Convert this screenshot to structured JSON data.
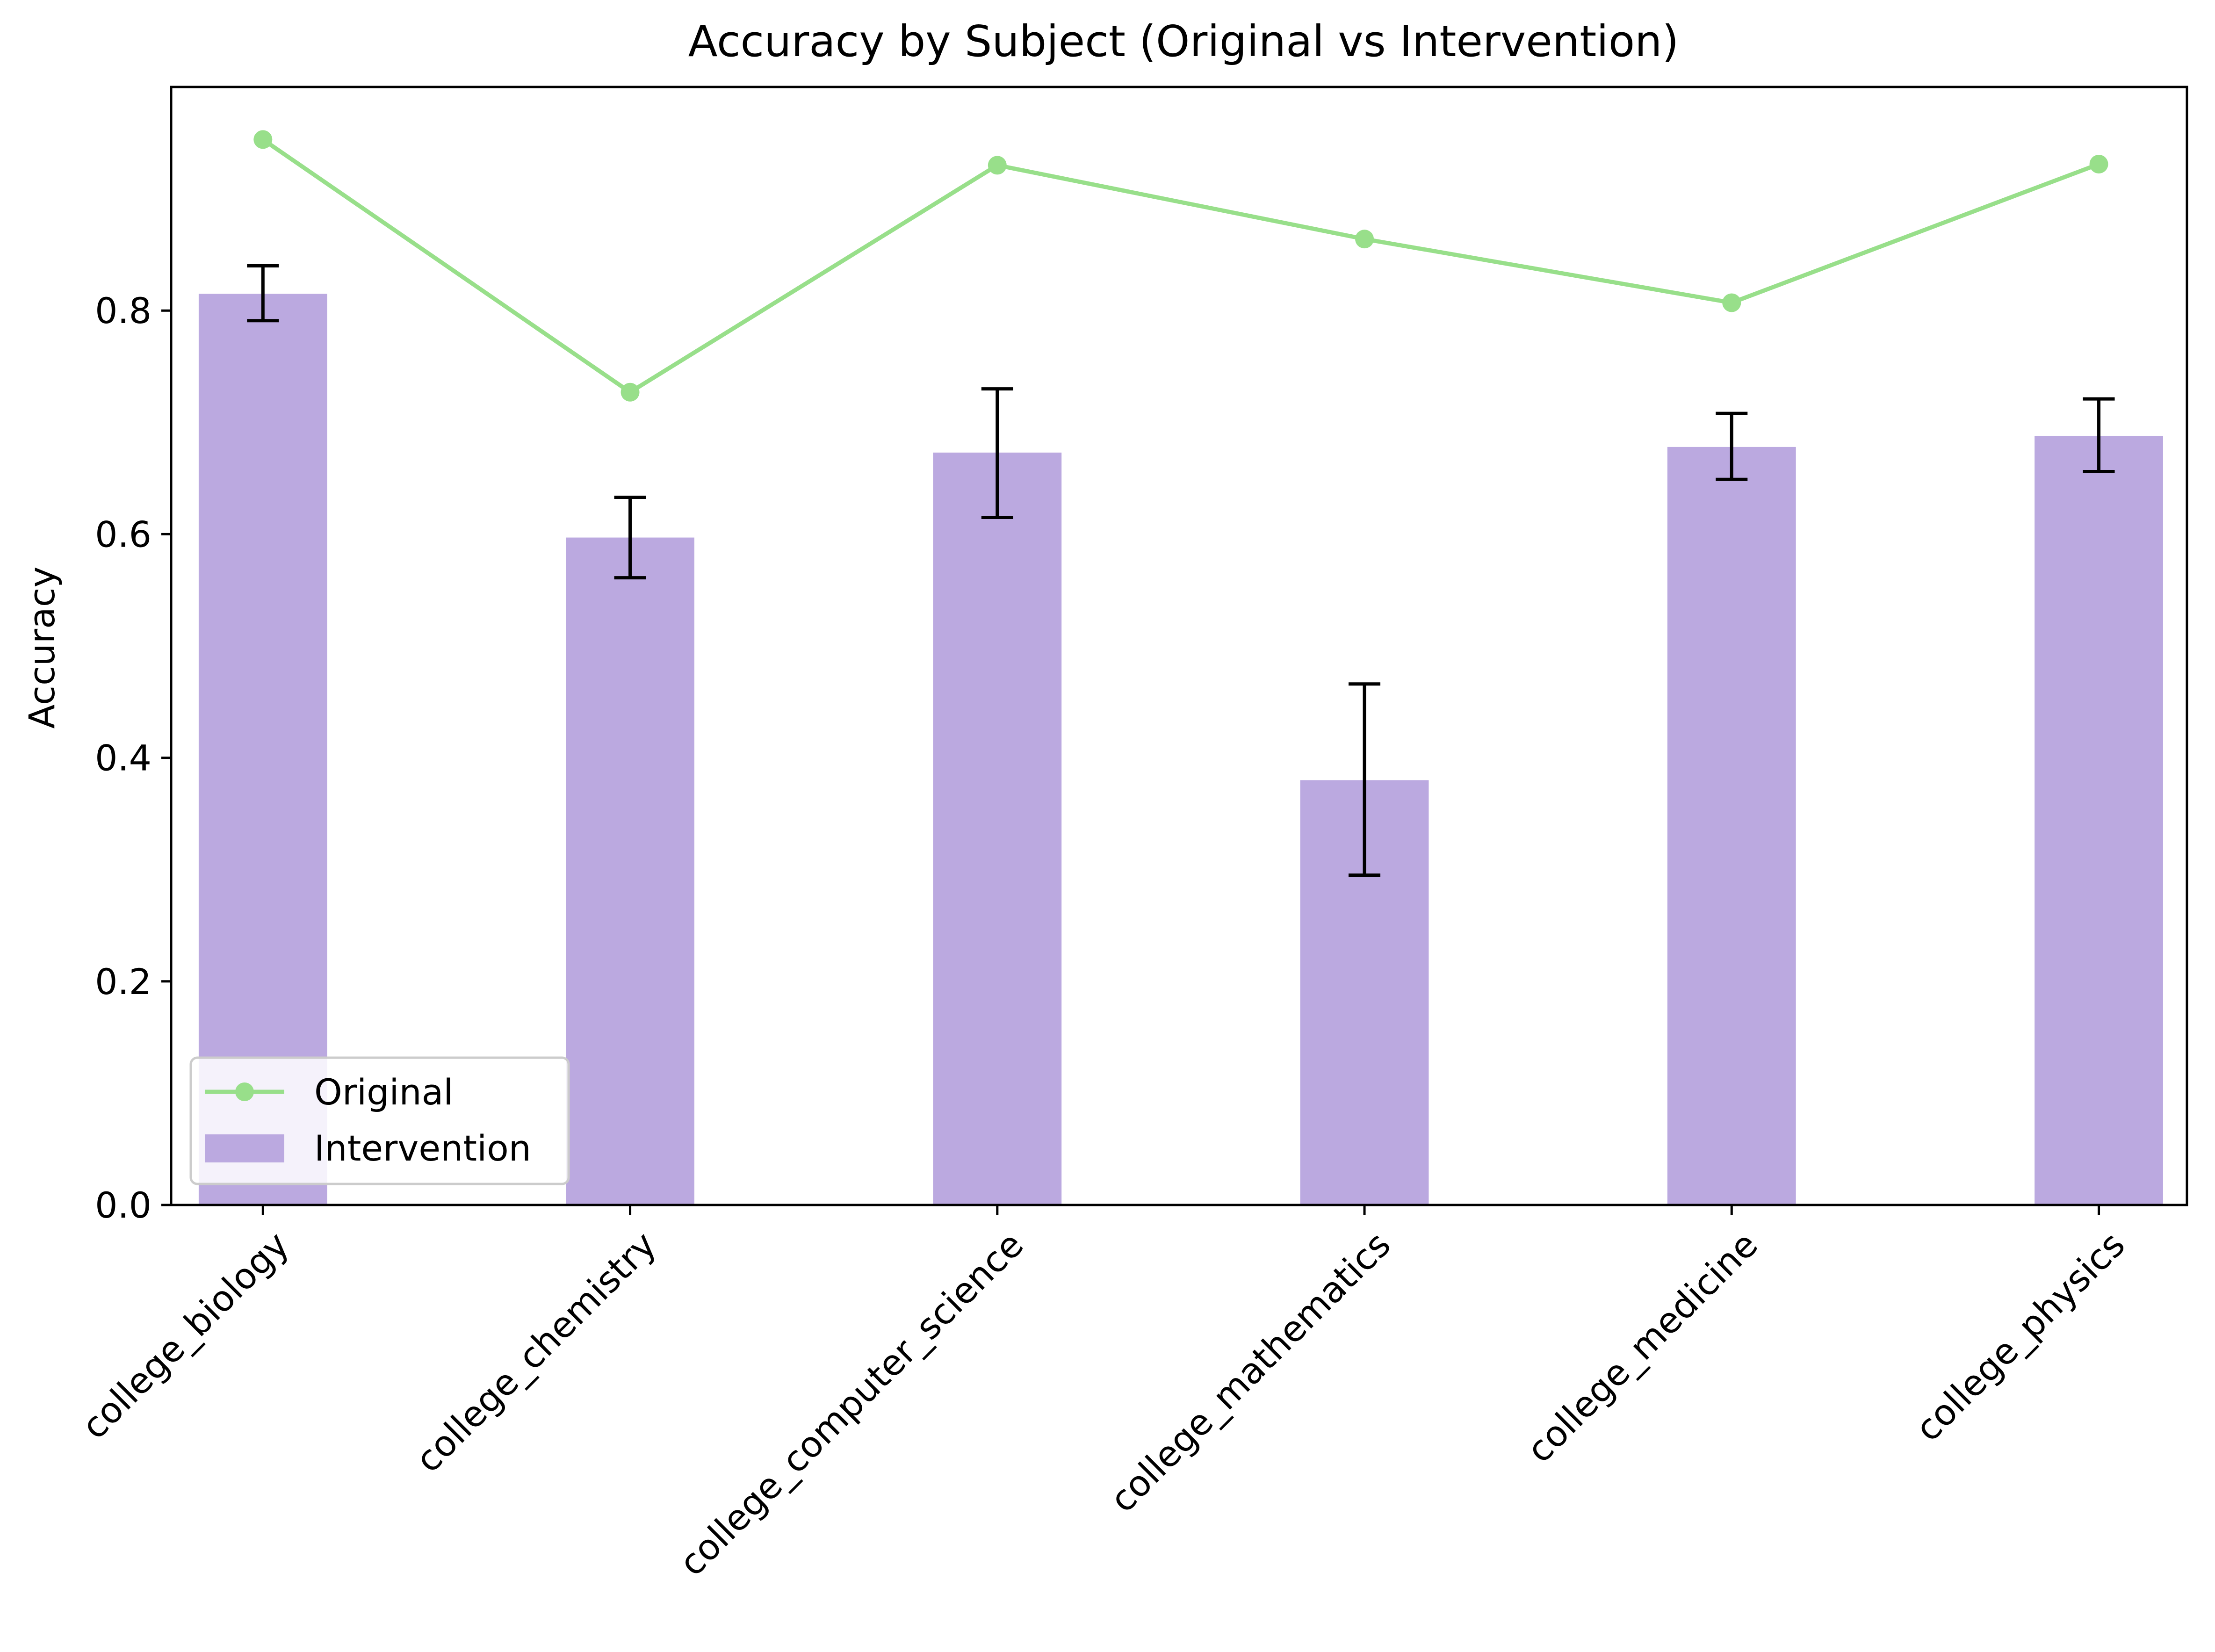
{
  "chart_data": {
    "type": "bar",
    "title": "Accuracy by Subject (Original vs Intervention)",
    "xlabel": "",
    "ylabel": "Accuracy",
    "ylim": [
      0,
      1.0
    ],
    "yticks": [
      0.0,
      0.2,
      0.4,
      0.6,
      0.8
    ],
    "ytick_labels": [
      "0.0",
      "0.2",
      "0.4",
      "0.6",
      "0.8"
    ],
    "categories": [
      "college_biology",
      "college_chemistry",
      "college_computer_science",
      "college_mathematics",
      "college_medicine",
      "college_physics"
    ],
    "series": [
      {
        "name": "Original",
        "type": "line",
        "color": "#98df8a",
        "values": [
          0.953,
          0.727,
          0.93,
          0.864,
          0.807,
          0.931
        ]
      },
      {
        "name": "Intervention",
        "type": "bar",
        "color": "#bba9e0",
        "values": [
          0.815,
          0.597,
          0.673,
          0.38,
          0.678,
          0.688
        ],
        "error_low": [
          0.791,
          0.561,
          0.615,
          0.295,
          0.649,
          0.656
        ],
        "error_high": [
          0.84,
          0.633,
          0.73,
          0.466,
          0.708,
          0.721
        ]
      }
    ],
    "legend": {
      "location": "lower-left",
      "entries": [
        "Original",
        "Intervention"
      ]
    },
    "grid": false
  }
}
